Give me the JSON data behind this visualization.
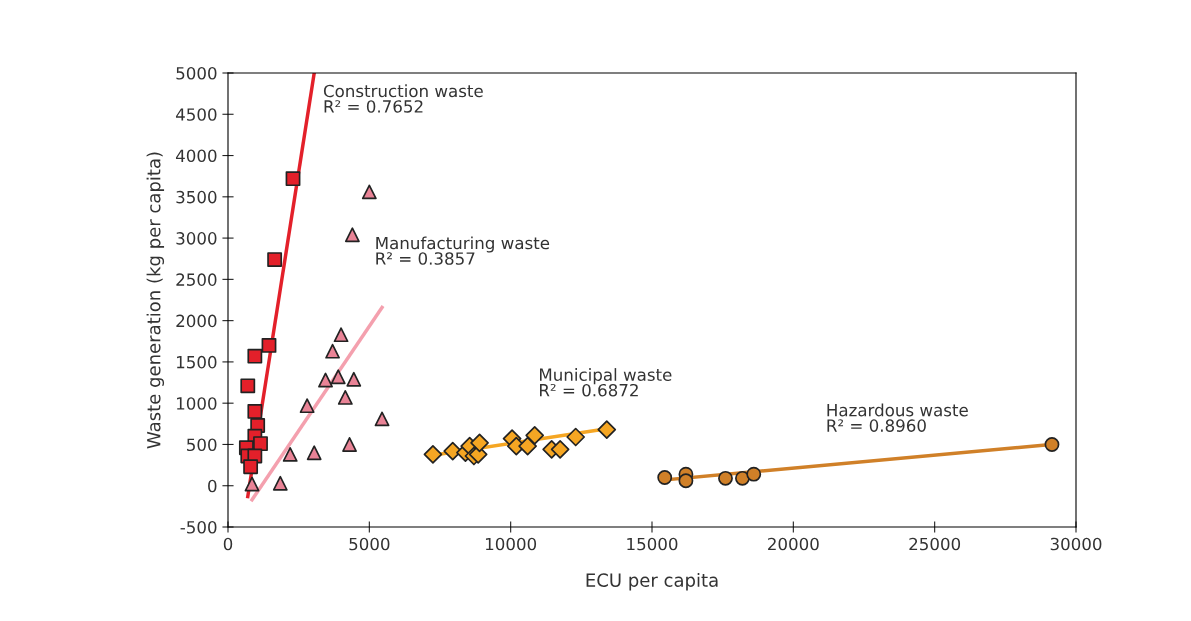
{
  "chart_data": {
    "type": "scatter",
    "xlabel": "ECU per capita",
    "ylabel": "Waste generation (kg per capita)",
    "xlim": [
      0,
      30000
    ],
    "xticks": [
      0,
      5000,
      10000,
      15000,
      20000,
      25000,
      30000
    ],
    "ylim": [
      -500,
      5000
    ],
    "yticks": [
      -500,
      0,
      500,
      1000,
      1500,
      2000,
      2500,
      3000,
      3500,
      4000,
      4500,
      5000
    ],
    "grid": false,
    "legend": false,
    "series": [
      {
        "marker": "square",
        "color": "#e3202a",
        "x": [
          2300,
          1650,
          1450,
          950,
          700,
          950,
          1050,
          950,
          1150,
          650,
          700,
          950,
          800
        ],
        "values": [
          3720,
          2740,
          1700,
          1570,
          1210,
          900,
          730,
          600,
          510,
          460,
          360,
          360,
          230
        ]
      },
      {
        "type": "line",
        "color": "#e3202a",
        "x": [
          700,
          3050
        ],
        "values": [
          -130,
          5000
        ]
      },
      {
        "marker": "triangle",
        "color": "#e98396",
        "x": [
          5000,
          4400,
          4000,
          3700,
          3450,
          3900,
          4450,
          4150,
          2800,
          5450,
          4300,
          3050,
          2200,
          850,
          1850
        ],
        "values": [
          3560,
          3040,
          1830,
          1630,
          1280,
          1320,
          1290,
          1070,
          970,
          810,
          500,
          400,
          380,
          20,
          30
        ]
      },
      {
        "type": "line",
        "color": "#f4a0ae",
        "x": [
          850,
          5450
        ],
        "values": [
          -170,
          2160
        ]
      },
      {
        "marker": "diamond",
        "color": "#f5a623",
        "x": [
          7250,
          7950,
          8400,
          8550,
          8700,
          8850,
          8900,
          10050,
          10200,
          10600,
          10850,
          11450,
          11750,
          12300,
          13400
        ],
        "values": [
          380,
          420,
          400,
          480,
          360,
          380,
          520,
          570,
          480,
          480,
          610,
          440,
          440,
          590,
          680
        ]
      },
      {
        "type": "line",
        "color": "#f5a623",
        "x": [
          7250,
          13400
        ],
        "values": [
          370,
          690
        ]
      },
      {
        "marker": "circle",
        "color": "#d08028",
        "x": [
          15450,
          16200,
          16200,
          17600,
          18200,
          18600,
          29150
        ],
        "values": [
          100,
          140,
          60,
          90,
          90,
          140,
          500
        ]
      },
      {
        "type": "line",
        "color": "#d08028",
        "x": [
          15450,
          29150
        ],
        "values": [
          70,
          500
        ]
      }
    ],
    "annotations": [
      "Construction waste\nR² = 0.7652",
      "Manufacturing waste\nR² = 0.3857",
      "Municipal waste\nR² = 0.6872",
      "Hazardous waste\nR² = 0.8960"
    ]
  }
}
